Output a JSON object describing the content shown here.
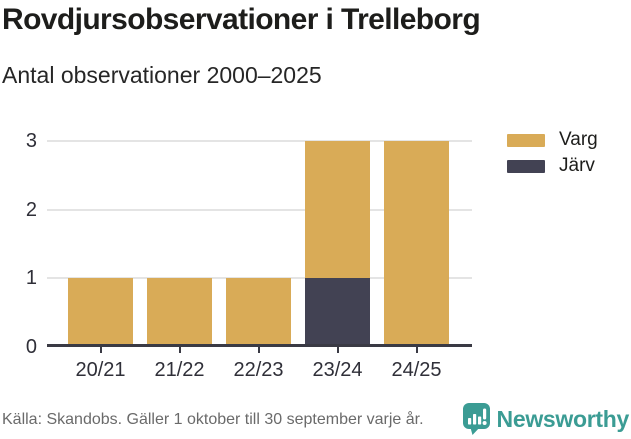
{
  "header": {
    "title": "Rovdjursobservationer i Trelleborg",
    "subtitle": "Antal observationer 2000–2025"
  },
  "chart_data": {
    "type": "bar",
    "stacked": true,
    "title": "Rovdjursobservationer i Trelleborg",
    "subtitle": "Antal observationer 2000–2025",
    "categories": [
      "20/21",
      "21/22",
      "22/23",
      "23/24",
      "24/25"
    ],
    "series": [
      {
        "name": "Varg",
        "color": "#d9ab57",
        "values": [
          1,
          1,
          1,
          2,
          3
        ]
      },
      {
        "name": "Järv",
        "color": "#424253",
        "values": [
          0,
          0,
          0,
          1,
          0
        ]
      }
    ],
    "stack_order_bottom_first": [
      "Järv",
      "Varg"
    ],
    "totals": [
      1,
      1,
      1,
      3,
      3
    ],
    "xlabel": "",
    "ylabel": "",
    "ylim": [
      0,
      3
    ],
    "yticks": [
      0,
      1,
      2,
      3
    ],
    "grid": "horizontal-only",
    "legend_position": "top-right"
  },
  "footer": {
    "source": "Källa: Skandobs. Gäller 1 oktober till 30 september varje år.",
    "brand": "Newsworthy"
  },
  "colors": {
    "varg": "#d9ab57",
    "jarv": "#424253",
    "axis": "#3a3a44",
    "grid": "#e4e4e4",
    "text_dark": "#1d1d1b",
    "text_muted": "#6a6a6a",
    "brand_teal": "#3b9c94"
  }
}
